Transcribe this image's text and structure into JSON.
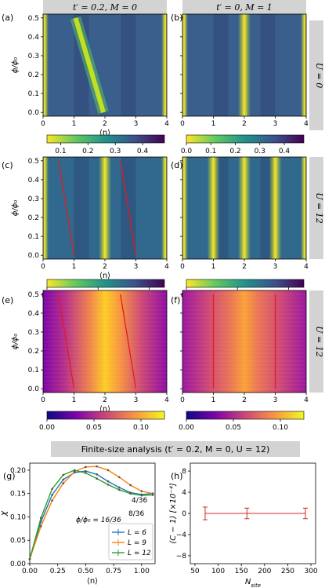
{
  "chart_data": [
    {
      "panel": "(a)",
      "type": "heatmap",
      "column_title": "t′ = 0.2, M = 0",
      "xlabel": "⟨n⟩",
      "ylabel": "ϕ/ϕ₀",
      "xlim": [
        0,
        4
      ],
      "ylim": [
        -0.02,
        0.52
      ],
      "xticks": [
        "0",
        "1",
        "2",
        "3",
        "4"
      ],
      "yticks": [
        "0.0",
        "0.1",
        "0.2",
        "0.3",
        "0.4",
        "0.5"
      ],
      "colormap": "viridis_r",
      "colorbar_ticks": [
        "0.1",
        "0.2",
        "0.3",
        "0.4"
      ],
      "colorbar_range": [
        0.05,
        0.48
      ],
      "bright_ridges": [
        {
          "from": [
            1.05,
            0.5
          ],
          "to": [
            1.95,
            0.0
          ]
        },
        {
          "x": 0.05
        },
        {
          "x": 3.95
        }
      ]
    },
    {
      "panel": "(b)",
      "type": "heatmap",
      "column_title": "t′ = 0, M = 1",
      "row_label": "U = 0",
      "xlim": [
        0,
        4
      ],
      "ylim": [
        -0.02,
        0.52
      ],
      "xticks": [
        "0",
        "1",
        "2",
        "3",
        "4"
      ],
      "colormap": "viridis_r",
      "colorbar_ticks": [
        "0.0",
        "0.1",
        "0.2",
        "0.3",
        "0.4"
      ],
      "colorbar_range": [
        0,
        0.48
      ],
      "bright_ridges": [
        {
          "x": 2.0
        },
        {
          "x": 0.05
        },
        {
          "x": 3.95
        }
      ]
    },
    {
      "panel": "(c)",
      "type": "heatmap",
      "xlabel": "⟨n⟩",
      "ylabel": "ϕ/ϕ₀",
      "xlim": [
        0,
        4
      ],
      "ylim": [
        -0.02,
        0.52
      ],
      "xticks": [
        "0",
        "1",
        "2",
        "3",
        "4"
      ],
      "yticks": [
        "0.0",
        "0.1",
        "0.2",
        "0.3",
        "0.4",
        "0.5"
      ],
      "colormap": "viridis_r",
      "colorbar_ticks": [
        "0.0",
        "0.1",
        "0.2"
      ],
      "colorbar_range": [
        0,
        0.23
      ],
      "bright_ridges": [
        {
          "x": 2.0
        },
        {
          "x": 0.05
        },
        {
          "x": 3.95
        }
      ],
      "red_lines": [
        {
          "from": [
            0.5,
            0.5
          ],
          "to": [
            1.0,
            0.0
          ]
        },
        {
          "from": [
            2.5,
            0.5
          ],
          "to": [
            3.0,
            0.0
          ]
        }
      ]
    },
    {
      "panel": "(d)",
      "type": "heatmap",
      "row_label": "U = 12",
      "xlim": [
        0,
        4
      ],
      "ylim": [
        -0.02,
        0.52
      ],
      "xticks": [
        "0",
        "1",
        "2",
        "3",
        "4"
      ],
      "colormap": "viridis_r",
      "colorbar_ticks": [
        "0.0",
        "0.1",
        "0.2"
      ],
      "colorbar_range": [
        0,
        0.23
      ],
      "bright_ridges": [
        {
          "x": 1.0
        },
        {
          "x": 2.0
        },
        {
          "x": 3.0
        },
        {
          "x": 0.05
        },
        {
          "x": 3.95
        }
      ]
    },
    {
      "panel": "(e)",
      "type": "heatmap",
      "xlabel": "⟨n⟩",
      "ylabel": "ϕ/ϕ₀",
      "xlim": [
        0,
        4
      ],
      "ylim": [
        -0.02,
        0.52
      ],
      "xticks": [
        "0",
        "1",
        "2",
        "3",
        "4"
      ],
      "yticks": [
        "0.0",
        "0.1",
        "0.2",
        "0.3",
        "0.4",
        "0.5"
      ],
      "colormap": "plasma",
      "colorbar_ticks": [
        "0.00",
        "0.05",
        "0.10"
      ],
      "colorbar_range": [
        0,
        0.125
      ],
      "red_lines": [
        {
          "from": [
            0.5,
            0.5
          ],
          "to": [
            1.0,
            0.0
          ]
        },
        {
          "from": [
            2.5,
            0.5
          ],
          "to": [
            3.0,
            0.0
          ]
        }
      ]
    },
    {
      "panel": "(f)",
      "type": "heatmap",
      "row_label": "U = 12",
      "xlim": [
        0,
        4
      ],
      "ylim": [
        -0.02,
        0.52
      ],
      "xticks": [
        "0",
        "1",
        "2",
        "3",
        "4"
      ],
      "colormap": "plasma",
      "colorbar_ticks": [
        "0.00",
        "0.05",
        "0.10"
      ],
      "colorbar_range": [
        0,
        0.125
      ],
      "red_lines": [
        {
          "from": [
            1.0,
            0.5
          ],
          "to": [
            1.0,
            0.0
          ]
        },
        {
          "from": [
            3.0,
            0.5
          ],
          "to": [
            3.0,
            0.0
          ]
        }
      ]
    },
    {
      "panel": "(g)",
      "type": "line",
      "section_title": "Finite-size analysis (t′ = 0.2, M = 0, U = 12)",
      "xlabel": "⟨n⟩",
      "ylabel": "χ",
      "xlim": [
        0,
        1.12
      ],
      "ylim": [
        0,
        0.215
      ],
      "xticks": [
        "0.00",
        "0.25",
        "0.50",
        "0.75",
        "1.00"
      ],
      "yticks": [
        "0.00",
        "0.05",
        "0.10",
        "0.15",
        "0.20"
      ],
      "annotations": [
        "4/36",
        "8/36",
        "ϕ/ϕ₀ = 16/36"
      ],
      "legend": "lower-right",
      "series": [
        {
          "name": "L = 6",
          "color": "#1f77b4",
          "x": [
            0,
            0.1,
            0.2,
            0.3,
            0.4,
            0.5,
            0.6,
            0.7,
            0.8,
            0.9,
            1.0,
            1.1
          ],
          "y": [
            0.01,
            0.09,
            0.147,
            0.18,
            0.195,
            0.198,
            0.191,
            0.176,
            0.163,
            0.152,
            0.148,
            0.15
          ]
        },
        {
          "name": "L = 9",
          "color": "#ff7f0e",
          "x": [
            0,
            0.1,
            0.2,
            0.3,
            0.4,
            0.5,
            0.6,
            0.7,
            0.8,
            0.9,
            1.0,
            1.1
          ],
          "y": [
            0.01,
            0.08,
            0.135,
            0.172,
            0.197,
            0.207,
            0.208,
            0.2,
            0.185,
            0.168,
            0.155,
            0.15
          ]
        },
        {
          "name": "L = 12",
          "color": "#2ca02c",
          "x": [
            0,
            0.1,
            0.2,
            0.3,
            0.4,
            0.5,
            0.6,
            0.7,
            0.8,
            0.9,
            1.0,
            1.1
          ],
          "y": [
            0.01,
            0.098,
            0.16,
            0.19,
            0.2,
            0.194,
            0.182,
            0.169,
            0.158,
            0.15,
            0.146,
            0.147
          ]
        }
      ]
    },
    {
      "panel": "(h)",
      "type": "scatter",
      "xlabel": "N_site",
      "ylabel": "(C − 1) [×10⁻⁴]",
      "xlim": [
        40,
        310
      ],
      "ylim": [
        -9.5,
        9.5
      ],
      "xticks": [
        "50",
        "100",
        "150",
        "200",
        "250",
        "300"
      ],
      "yticks": [
        "−8",
        "−4",
        "0",
        "4",
        "8"
      ],
      "series": [
        {
          "color": "#d62728",
          "x": [
            72,
            162,
            288
          ],
          "y": [
            0,
            0,
            0
          ],
          "err": [
            1.2,
            1.0,
            1.0
          ]
        }
      ]
    }
  ]
}
